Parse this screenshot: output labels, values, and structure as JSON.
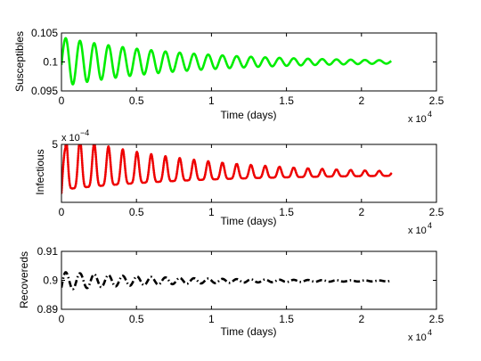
{
  "chart_data": [
    {
      "type": "line",
      "xlabel": "Time (days)",
      "ylabel": "Susceptibles",
      "xlim": [
        0,
        25000
      ],
      "ylim": [
        0.095,
        0.105
      ],
      "x_ticks": [
        0,
        5000,
        10000,
        15000,
        20000,
        25000
      ],
      "x_tick_labels": [
        "0",
        "0.5",
        "1",
        "1.5",
        "2",
        "2.5"
      ],
      "x_exponent_label": "x 10",
      "x_exponent": "4",
      "y_ticks": [
        0.095,
        0.1,
        0.105
      ],
      "y_tick_labels": [
        "0.095",
        "0.1",
        "0.105"
      ],
      "y_exponent_label": "",
      "y_exponent": "",
      "grid": false,
      "color": "#00ee00",
      "line_style": "solid",
      "series": [
        {
          "model": "damped_oscillation",
          "x_end": 22000,
          "steady_value": 0.1,
          "initial_value": 0.0995,
          "first_peak_value": 0.1041,
          "first_trough_value": 0.0967,
          "period_days": 950,
          "amplitude_at_end": 0.00028
        }
      ]
    },
    {
      "type": "line",
      "xlabel": "Time (days)",
      "ylabel": "Infectious",
      "xlim": [
        0,
        25000
      ],
      "ylim": [
        0,
        0.0005
      ],
      "x_ticks": [
        0,
        5000,
        10000,
        15000,
        20000,
        25000
      ],
      "x_tick_labels": [
        "0",
        "0.5",
        "1",
        "1.5",
        "2",
        "2.5"
      ],
      "x_exponent_label": "x 10",
      "x_exponent": "4",
      "y_ticks": [
        0.0005
      ],
      "y_tick_labels": [
        "5"
      ],
      "y_exponent_label": "x 10",
      "y_exponent": "−4",
      "grid": false,
      "color": "#ee0000",
      "line_style": "dotted",
      "series": [
        {
          "model": "spiky_damped_oscillation",
          "x_end": 22000,
          "steady_value": 0.00024,
          "initial_value": 8e-05,
          "first_peak_value": 0.00047,
          "trough_value_early": 4e-05,
          "period_days": 950,
          "amplitude_at_end": 2e-05
        }
      ]
    },
    {
      "type": "line",
      "xlabel": "Time (days)",
      "ylabel": "Recovereds",
      "xlim": [
        0,
        25000
      ],
      "ylim": [
        0.89,
        0.91
      ],
      "x_ticks": [
        0,
        5000,
        10000,
        15000,
        20000,
        25000
      ],
      "x_tick_labels": [
        "0",
        "0.5",
        "1",
        "1.5",
        "2",
        "2.5"
      ],
      "x_exponent_label": "x 10",
      "x_exponent": "4",
      "y_ticks": [
        0.89,
        0.9,
        0.91
      ],
      "y_tick_labels": [
        "0.89",
        "0.9",
        "0.91"
      ],
      "y_exponent_label": "",
      "y_exponent": "",
      "grid": false,
      "color": "#000000",
      "line_style": "dash-dot",
      "series": [
        {
          "model": "damped_oscillation",
          "x_end": 22000,
          "steady_value": 0.8998,
          "initial_value": 0.8975,
          "first_peak_value": 0.9028,
          "first_trough_value": 0.8958,
          "period_days": 950,
          "amplitude_at_end": 0.00015
        }
      ]
    }
  ]
}
